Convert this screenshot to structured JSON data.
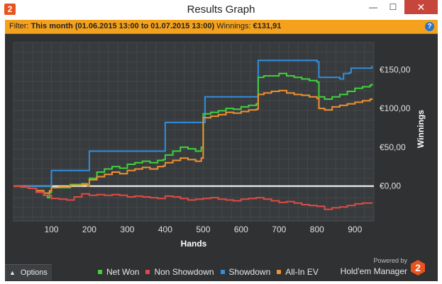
{
  "window": {
    "title": "Results Graph",
    "minimize_glyph": "—",
    "maximize_glyph": "☐",
    "close_glyph": "✕"
  },
  "filter": {
    "label": "Filter:",
    "value": "This month (01.06.2015 13:00 to 01.07.2015 13:00)",
    "winnings_label": "Winnings:",
    "winnings_value": "€131,91"
  },
  "options": {
    "label": "Options"
  },
  "powered": {
    "text": "Powered by",
    "brand": "Hold'em Manager",
    "logo_text": "2"
  },
  "app_icon_text": "2",
  "help_glyph": "?",
  "legend": [
    {
      "name": "Net Won",
      "color": "#3fd23c"
    },
    {
      "name": "Non Showdown",
      "color": "#df4a45"
    },
    {
      "name": "Showdown",
      "color": "#2e8fe0"
    },
    {
      "name": "All-In EV",
      "color": "#f0902f"
    }
  ],
  "chart_data": {
    "type": "line",
    "xlabel": "Hands",
    "ylabel": "Winnings",
    "xlim": [
      0,
      950
    ],
    "ylim": [
      -45,
      185
    ],
    "x_ticks": [
      100,
      200,
      300,
      400,
      500,
      600,
      700,
      800,
      900
    ],
    "y_ticks": [
      {
        "value": 0,
        "label": "€0,00"
      },
      {
        "value": 50,
        "label": "€50,00"
      },
      {
        "value": 100,
        "label": "€100,00"
      },
      {
        "value": 150,
        "label": "€150,00"
      }
    ],
    "grid": true,
    "series": [
      {
        "name": "Showdown",
        "color": "#2e8fe0",
        "x": [
          0,
          40,
          95,
          100,
          198,
          200,
          395,
          400,
          500,
          505,
          640,
          645,
          800,
          805,
          860,
          870,
          885,
          890,
          935,
          945
        ],
        "y": [
          0,
          0,
          0,
          20,
          20,
          45,
          45,
          82,
          82,
          115,
          115,
          162,
          160,
          140,
          138,
          145,
          146,
          152,
          152,
          155
        ]
      },
      {
        "name": "Net Won",
        "color": "#3fd23c",
        "x": [
          0,
          20,
          40,
          60,
          80,
          90,
          95,
          100,
          120,
          150,
          180,
          195,
          200,
          220,
          240,
          260,
          280,
          300,
          320,
          340,
          360,
          380,
          395,
          400,
          420,
          440,
          460,
          480,
          495,
          500,
          520,
          540,
          560,
          580,
          600,
          620,
          640,
          645,
          660,
          680,
          700,
          720,
          740,
          760,
          780,
          800,
          805,
          820,
          840,
          860,
          880,
          900,
          920,
          940,
          945
        ],
        "y": [
          0,
          -1,
          -3,
          -8,
          -12,
          -15,
          -8,
          -2,
          -2,
          2,
          3,
          0,
          10,
          18,
          22,
          25,
          23,
          28,
          30,
          32,
          30,
          33,
          34,
          40,
          45,
          50,
          48,
          45,
          50,
          93,
          95,
          97,
          100,
          99,
          102,
          104,
          106,
          140,
          142,
          142,
          145,
          142,
          140,
          138,
          136,
          134,
          115,
          112,
          115,
          118,
          122,
          126,
          128,
          130,
          132
        ]
      },
      {
        "name": "All-In EV",
        "color": "#f0902f",
        "x": [
          0,
          20,
          40,
          60,
          80,
          95,
          100,
          120,
          150,
          180,
          195,
          200,
          220,
          240,
          260,
          280,
          300,
          320,
          340,
          360,
          380,
          395,
          400,
          420,
          440,
          460,
          480,
          495,
          500,
          520,
          540,
          560,
          580,
          600,
          620,
          640,
          645,
          660,
          680,
          700,
          720,
          740,
          760,
          780,
          800,
          805,
          820,
          840,
          860,
          880,
          900,
          920,
          940,
          945
        ],
        "y": [
          0,
          -1,
          -3,
          -6,
          -9,
          -6,
          -2,
          -1,
          1,
          2,
          0,
          8,
          12,
          15,
          18,
          16,
          20,
          22,
          24,
          22,
          25,
          26,
          30,
          33,
          36,
          34,
          32,
          36,
          88,
          90,
          92,
          95,
          94,
          96,
          98,
          99,
          118,
          120,
          122,
          123,
          120,
          118,
          117,
          115,
          113,
          100,
          98,
          102,
          104,
          106,
          108,
          110,
          112,
          113
        ]
      },
      {
        "name": "Non Showdown",
        "color": "#df4a45",
        "x": [
          0,
          20,
          40,
          60,
          80,
          100,
          120,
          140,
          160,
          180,
          200,
          220,
          240,
          260,
          280,
          300,
          320,
          340,
          360,
          380,
          400,
          420,
          440,
          460,
          480,
          500,
          520,
          540,
          560,
          580,
          600,
          620,
          640,
          660,
          680,
          700,
          720,
          740,
          760,
          780,
          800,
          820,
          840,
          860,
          880,
          900,
          920,
          945
        ],
        "y": [
          0,
          -1,
          -3,
          -8,
          -12,
          -16,
          -17,
          -18,
          -14,
          -10,
          -12,
          -11,
          -12,
          -11,
          -12,
          -14,
          -13,
          -14,
          -15,
          -16,
          -13,
          -14,
          -16,
          -18,
          -17,
          -16,
          -15,
          -17,
          -18,
          -19,
          -17,
          -16,
          -15,
          -17,
          -19,
          -21,
          -20,
          -22,
          -24,
          -25,
          -26,
          -30,
          -28,
          -27,
          -25,
          -23,
          -22,
          -21
        ]
      }
    ]
  }
}
